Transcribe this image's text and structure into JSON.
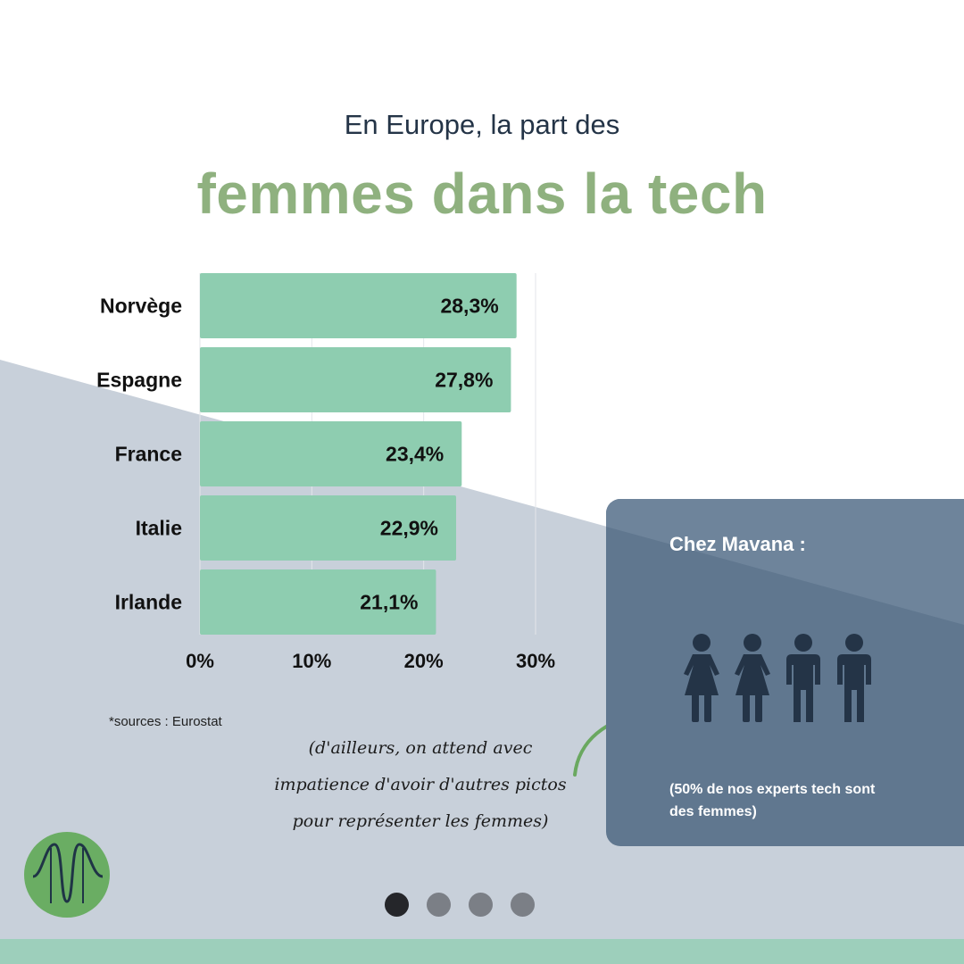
{
  "header": {
    "subtitle": "En Europe, la part des",
    "title": "femmes dans la tech"
  },
  "chart_data": {
    "type": "bar",
    "orientation": "horizontal",
    "categories": [
      "Norvège",
      "Espagne",
      "France",
      "Italie",
      "Irlande"
    ],
    "values": [
      28.3,
      27.8,
      23.4,
      22.9,
      21.1
    ],
    "value_labels": [
      "28,3%",
      "27,8%",
      "23,4%",
      "22,9%",
      "21,1%"
    ],
    "xlim": [
      0,
      30
    ],
    "xticks": [
      0,
      10,
      20,
      30
    ],
    "xtick_labels": [
      "0%",
      "10%",
      "20%",
      "30%"
    ],
    "grid": true,
    "bar_color": "#8ecdb0"
  },
  "source": "*sources : Eurostat",
  "note": "(d'ailleurs, on attend  avec impatience d'avoir d'autres pictos pour représenter les femmes)",
  "card": {
    "title": "Chez Mavana :",
    "people": [
      {
        "icon": "woman-icon"
      },
      {
        "icon": "woman-icon"
      },
      {
        "icon": "man-icon"
      },
      {
        "icon": "man-icon"
      }
    ],
    "footnote": "(50% de nos experts tech sont des femmes)"
  },
  "pagination": {
    "pages": 4,
    "current": 1
  },
  "colors": {
    "title_green": "#8fb17f",
    "navy": "#243447",
    "bg_gray": "#c8d0da",
    "card": "#60778f",
    "footer_band": "#9dcfbb",
    "logo": "#6aad63"
  }
}
